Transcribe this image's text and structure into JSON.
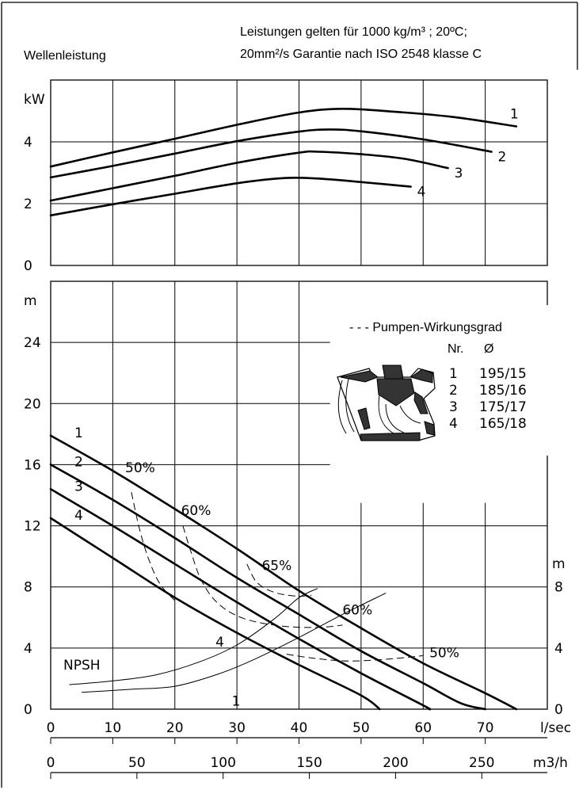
{
  "chart_data": {
    "header": {
      "left_title": "Wellenleistung",
      "note_line1": "Leistungen gelten für 1000 kg/m³ ; 20ºC;",
      "note_line2": "20mm²/s Garantie nach ISO 2548 klasse C"
    },
    "x_axis": {
      "unit_primary": "l/sec",
      "ticks_primary": [
        "0",
        "10",
        "20",
        "30",
        "40",
        "50",
        "60",
        "70"
      ],
      "xlim": [
        0,
        80
      ],
      "unit_secondary": "m3/h",
      "ticks_secondary": [
        "0",
        "50",
        "100",
        "150",
        "200",
        "250"
      ]
    },
    "power_chart": {
      "type": "line",
      "ylabel": "kW",
      "ylim": [
        0,
        6
      ],
      "ytick_labels": [
        "0",
        "2",
        "4"
      ],
      "ytick_values": [
        0,
        2,
        4
      ],
      "series": [
        {
          "name": "1",
          "points": [
            [
              0,
              3.2
            ],
            [
              10,
              3.66
            ],
            [
              20,
              4.1
            ],
            [
              30,
              4.55
            ],
            [
              40,
              4.95
            ],
            [
              47,
              5.07
            ],
            [
              55,
              4.98
            ],
            [
              65,
              4.8
            ],
            [
              75,
              4.5
            ]
          ]
        },
        {
          "name": "2",
          "points": [
            [
              0,
              2.85
            ],
            [
              10,
              3.22
            ],
            [
              20,
              3.62
            ],
            [
              30,
              4.02
            ],
            [
              40,
              4.33
            ],
            [
              45,
              4.4
            ],
            [
              50,
              4.34
            ],
            [
              60,
              4.08
            ],
            [
              71,
              3.68
            ]
          ]
        },
        {
          "name": "3",
          "points": [
            [
              0,
              2.1
            ],
            [
              10,
              2.5
            ],
            [
              20,
              2.9
            ],
            [
              30,
              3.32
            ],
            [
              40,
              3.65
            ],
            [
              43,
              3.68
            ],
            [
              50,
              3.6
            ],
            [
              57,
              3.45
            ],
            [
              64,
              3.15
            ]
          ]
        },
        {
          "name": "4",
          "points": [
            [
              0,
              1.62
            ],
            [
              10,
              1.98
            ],
            [
              20,
              2.32
            ],
            [
              30,
              2.66
            ],
            [
              38,
              2.83
            ],
            [
              44,
              2.8
            ],
            [
              51,
              2.68
            ],
            [
              58,
              2.55
            ]
          ]
        }
      ]
    },
    "head_chart": {
      "type": "line",
      "ylabel": "m",
      "ylim": [
        0,
        28
      ],
      "ytick_labels": [
        "0",
        "4",
        "8",
        "12",
        "16",
        "20",
        "24"
      ],
      "ytick_values": [
        0,
        4,
        8,
        12,
        16,
        20,
        24
      ],
      "series": [
        {
          "name": "1",
          "points": [
            [
              0,
              17.9
            ],
            [
              10,
              15.6
            ],
            [
              20,
              13.1
            ],
            [
              30,
              10.5
            ],
            [
              40,
              7.75
            ],
            [
              50,
              5.3
            ],
            [
              60,
              3.0
            ],
            [
              70,
              1.05
            ],
            [
              75,
              0
            ]
          ]
        },
        {
          "name": "2",
          "points": [
            [
              0,
              16.0
            ],
            [
              10,
              13.7
            ],
            [
              20,
              11.2
            ],
            [
              30,
              8.6
            ],
            [
              40,
              6.2
            ],
            [
              50,
              3.8
            ],
            [
              60,
              1.7
            ],
            [
              66,
              0.4
            ],
            [
              70,
              0
            ]
          ]
        },
        {
          "name": "3",
          "points": [
            [
              0,
              14.4
            ],
            [
              10,
              12.0
            ],
            [
              20,
              9.5
            ],
            [
              30,
              7.0
            ],
            [
              40,
              4.6
            ],
            [
              50,
              2.35
            ],
            [
              60,
              0.25
            ],
            [
              61,
              0
            ]
          ]
        },
        {
          "name": "4",
          "points": [
            [
              0,
              12.5
            ],
            [
              10,
              9.9
            ],
            [
              20,
              7.3
            ],
            [
              30,
              5.0
            ],
            [
              40,
              2.9
            ],
            [
              50,
              0.9
            ],
            [
              53,
              0
            ]
          ]
        }
      ],
      "efficiency_legend": "- - - Pumpen-Wirkungsgrad",
      "efficiency_labels": [
        {
          "text": "50%",
          "x": 12,
          "y": 15.5
        },
        {
          "text": "60%",
          "x": 21,
          "y": 12.7
        },
        {
          "text": "65%",
          "x": 34,
          "y": 9.1
        },
        {
          "text": "60%",
          "x": 47,
          "y": 6.2
        },
        {
          "text": "50%",
          "x": 61,
          "y": 3.4
        }
      ],
      "efficiency_curves": [
        {
          "name": "50% left",
          "points": [
            [
              13,
              14.2
            ],
            [
              14.3,
              11.8
            ],
            [
              15.8,
              9.8
            ],
            [
              17.6,
              8.2
            ],
            [
              20,
              7.1
            ]
          ]
        },
        {
          "name": "60% left",
          "points": [
            [
              21.3,
              12.0
            ],
            [
              22.6,
              10.3
            ],
            [
              24.3,
              8.4
            ],
            [
              27,
              6.9
            ],
            [
              31,
              5.95
            ],
            [
              37,
              5.45
            ],
            [
              43,
              5.35
            ],
            [
              47,
              5.5
            ]
          ]
        },
        {
          "name": "65%",
          "points": [
            [
              31.6,
              9.5
            ],
            [
              33.2,
              8.3
            ],
            [
              36,
              7.65
            ],
            [
              39.5,
              7.4
            ],
            [
              42,
              7.45
            ]
          ]
        },
        {
          "name": "50% right",
          "points": [
            [
              38,
              3.6
            ],
            [
              42,
              3.35
            ],
            [
              48,
              3.15
            ],
            [
              55,
              3.3
            ],
            [
              60,
              3.5
            ]
          ]
        }
      ],
      "npsh_label": "NPSH",
      "npsh_axis": {
        "unit": "m",
        "ytick_labels": [
          "0",
          "4",
          "8"
        ],
        "ytick_values": [
          0,
          4,
          8
        ]
      },
      "npsh_curves": [
        {
          "name": "4",
          "points": [
            [
              3,
              1.6
            ],
            [
              10,
              1.85
            ],
            [
              17,
              2.25
            ],
            [
              24,
              3.1
            ],
            [
              30,
              4.2
            ],
            [
              36,
              5.9
            ],
            [
              40,
              7.3
            ],
            [
              43,
              7.9
            ]
          ]
        },
        {
          "name": "1",
          "points": [
            [
              5,
              1.1
            ],
            [
              13,
              1.3
            ],
            [
              20,
              1.5
            ],
            [
              27,
              2.3
            ],
            [
              33,
              3.3
            ],
            [
              40,
              4.7
            ],
            [
              47,
              6.2
            ],
            [
              54,
              7.6
            ]
          ]
        }
      ]
    },
    "impeller_table": {
      "col_nr": "Nr.",
      "col_diameter": "Ø",
      "rows": [
        {
          "nr": "1",
          "dia": "195/15"
        },
        {
          "nr": "2",
          "dia": "185/16"
        },
        {
          "nr": "3",
          "dia": "175/17"
        },
        {
          "nr": "4",
          "dia": "165/18"
        }
      ]
    }
  }
}
